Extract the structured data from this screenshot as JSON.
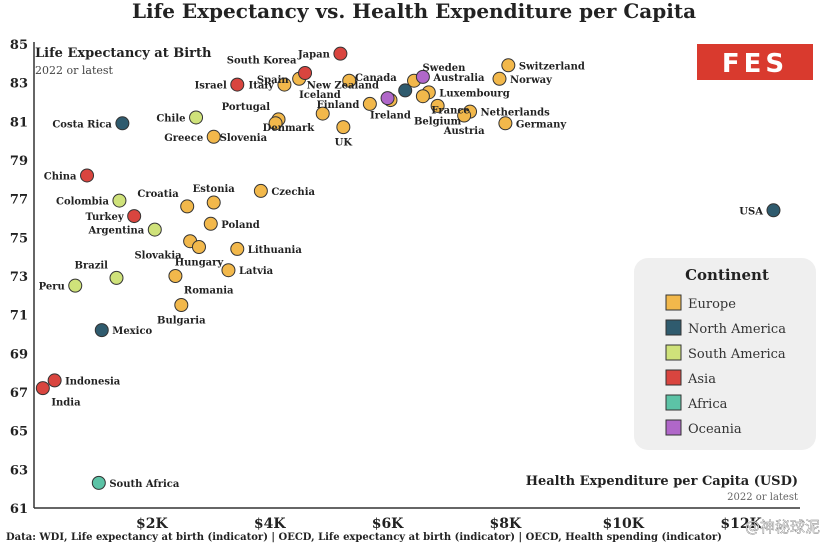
{
  "title": "Life Expectancy vs. Health Expenditure per Capita",
  "source": "Data: WDI, Life expectancy at birth (indicator) | OECD, Life expectancy at birth (indicator) | OECD, Health spending (indicator)",
  "logo": "FES",
  "watermark": "@神秘球泥",
  "chart_data": {
    "type": "scatter",
    "title": "Life Expectancy vs. Health Expenditure per Capita",
    "ylabel": "Life Expectancy at Birth",
    "ylabel_sub": "2022 or latest",
    "xlabel": "Health Expenditure per Capita (USD)",
    "xlabel_sub": "2022 or latest",
    "xlim": [
      0,
      13000
    ],
    "ylim": [
      61,
      85
    ],
    "xticks": [
      2000,
      4000,
      6000,
      8000,
      10000,
      12000
    ],
    "xtick_labels": [
      "$2K",
      "$4K",
      "$6K",
      "$8K",
      "$10K",
      "$12K"
    ],
    "yticks": [
      61,
      63,
      65,
      67,
      69,
      71,
      73,
      75,
      77,
      79,
      81,
      83,
      85
    ],
    "ytick_labels": [
      "61",
      "63",
      "65",
      "67",
      "69",
      "71",
      "73",
      "75",
      "77",
      "79",
      "81",
      "83",
      "85"
    ],
    "grid": false,
    "legend_position": "bottom-right",
    "legend_title": "Continent",
    "continents": [
      {
        "name": "Europe",
        "color": "#f2b84b"
      },
      {
        "name": "North America",
        "color": "#2f5b6e"
      },
      {
        "name": "South America",
        "color": "#cfe27a"
      },
      {
        "name": "Asia",
        "color": "#d9453f"
      },
      {
        "name": "Africa",
        "color": "#5cc3a6"
      },
      {
        "name": "Oceania",
        "color": "#b067c9"
      }
    ],
    "points": [
      {
        "country": "Switzerland",
        "continent": "Europe",
        "x": 8050,
        "y": 83.9,
        "label_pos": "right"
      },
      {
        "country": "Norway",
        "continent": "Europe",
        "x": 7900,
        "y": 83.2,
        "label_pos": "right"
      },
      {
        "country": "Netherlands",
        "continent": "Europe",
        "x": 7400,
        "y": 81.5,
        "label_pos": "right"
      },
      {
        "country": "Germany",
        "continent": "Europe",
        "x": 8000,
        "y": 80.9,
        "label_pos": "right"
      },
      {
        "country": "Austria",
        "continent": "Europe",
        "x": 7300,
        "y": 81.3,
        "label_pos": "below"
      },
      {
        "country": "Belgium",
        "continent": "Europe",
        "x": 6850,
        "y": 81.8,
        "label_pos": "below"
      },
      {
        "country": "Luxembourg",
        "continent": "Europe",
        "x": 6700,
        "y": 82.5,
        "label_pos": "right"
      },
      {
        "country": "France",
        "continent": "Europe",
        "x": 6600,
        "y": 82.3,
        "label_pos": "below-right"
      },
      {
        "country": "Sweden",
        "continent": "Europe",
        "x": 6450,
        "y": 83.1,
        "label_pos": "above-right"
      },
      {
        "country": "Iceland",
        "continent": "Europe",
        "x": 5350,
        "y": 83.1,
        "label_pos": "below-left"
      },
      {
        "country": "Finland",
        "continent": "Europe",
        "x": 5700,
        "y": 81.9,
        "label_pos": "left"
      },
      {
        "country": "Ireland",
        "continent": "Europe",
        "x": 6050,
        "y": 82.1,
        "label_pos": "below"
      },
      {
        "country": "UK",
        "continent": "Europe",
        "x": 5250,
        "y": 80.7,
        "label_pos": "below"
      },
      {
        "country": "Denmark",
        "continent": "Europe",
        "x": 4900,
        "y": 81.4,
        "label_pos": "below-left"
      },
      {
        "country": "Spain",
        "continent": "Europe",
        "x": 4500,
        "y": 83.2,
        "label_pos": "left"
      },
      {
        "country": "Italy",
        "continent": "Europe",
        "x": 4250,
        "y": 82.9,
        "label_pos": "left"
      },
      {
        "country": "Portugal",
        "continent": "Europe",
        "x": 4150,
        "y": 81.1,
        "label_pos": "above-left"
      },
      {
        "country": "Slovenia",
        "continent": "Europe",
        "x": 4100,
        "y": 80.9,
        "label_pos": "below-left"
      },
      {
        "country": "Greece",
        "continent": "Europe",
        "x": 3050,
        "y": 80.2,
        "label_pos": "left"
      },
      {
        "country": "Czechia",
        "continent": "Europe",
        "x": 3850,
        "y": 77.4,
        "label_pos": "right"
      },
      {
        "country": "Estonia",
        "continent": "Europe",
        "x": 3050,
        "y": 76.8,
        "label_pos": "above"
      },
      {
        "country": "Croatia",
        "continent": "Europe",
        "x": 2600,
        "y": 76.6,
        "label_pos": "above-left"
      },
      {
        "country": "Poland",
        "continent": "Europe",
        "x": 3000,
        "y": 75.7,
        "label_pos": "right"
      },
      {
        "country": "Slovakia",
        "continent": "Europe",
        "x": 2650,
        "y": 74.8,
        "label_pos": "below-left"
      },
      {
        "country": "Hungary",
        "continent": "Europe",
        "x": 2800,
        "y": 74.5,
        "label_pos": "below"
      },
      {
        "country": "Lithuania",
        "continent": "Europe",
        "x": 3450,
        "y": 74.4,
        "label_pos": "right"
      },
      {
        "country": "Latvia",
        "continent": "Europe",
        "x": 3300,
        "y": 73.3,
        "label_pos": "right"
      },
      {
        "country": "Romania",
        "continent": "Europe",
        "x": 2400,
        "y": 73.0,
        "label_pos": "below-right"
      },
      {
        "country": "Bulgaria",
        "continent": "Europe",
        "x": 2500,
        "y": 71.5,
        "label_pos": "below"
      },
      {
        "country": "USA",
        "continent": "North America",
        "x": 12550,
        "y": 76.4,
        "label_pos": "left"
      },
      {
        "country": "Canada",
        "continent": "North America",
        "x": 6300,
        "y": 82.6,
        "label_pos": "above-left"
      },
      {
        "country": "Costa Rica",
        "continent": "North America",
        "x": 1500,
        "y": 80.9,
        "label_pos": "left"
      },
      {
        "country": "Mexico",
        "continent": "North America",
        "x": 1150,
        "y": 70.2,
        "label_pos": "right"
      },
      {
        "country": "Chile",
        "continent": "South America",
        "x": 2750,
        "y": 81.2,
        "label_pos": "left"
      },
      {
        "country": "Colombia",
        "continent": "South America",
        "x": 1450,
        "y": 76.9,
        "label_pos": "left"
      },
      {
        "country": "Argentina",
        "continent": "South America",
        "x": 2050,
        "y": 75.4,
        "label_pos": "left"
      },
      {
        "country": "Brazil",
        "continent": "South America",
        "x": 1400,
        "y": 72.9,
        "label_pos": "above-left"
      },
      {
        "country": "Peru",
        "continent": "South America",
        "x": 700,
        "y": 72.5,
        "label_pos": "left"
      },
      {
        "country": "Japan",
        "continent": "Asia",
        "x": 5200,
        "y": 84.5,
        "label_pos": "left"
      },
      {
        "country": "South Korea",
        "continent": "Asia",
        "x": 4600,
        "y": 83.5,
        "label_pos": "above-left"
      },
      {
        "country": "Israel",
        "continent": "Asia",
        "x": 3450,
        "y": 82.9,
        "label_pos": "left"
      },
      {
        "country": "China",
        "continent": "Asia",
        "x": 900,
        "y": 78.2,
        "label_pos": "left"
      },
      {
        "country": "Turkey",
        "continent": "Asia",
        "x": 1700,
        "y": 76.1,
        "label_pos": "left"
      },
      {
        "country": "Indonesia",
        "continent": "Asia",
        "x": 350,
        "y": 67.6,
        "label_pos": "right"
      },
      {
        "country": "India",
        "continent": "Asia",
        "x": 150,
        "y": 67.2,
        "label_pos": "below-right"
      },
      {
        "country": "South Africa",
        "continent": "Africa",
        "x": 1100,
        "y": 62.3,
        "label_pos": "right"
      },
      {
        "country": "Australia",
        "continent": "Oceania",
        "x": 6600,
        "y": 83.3,
        "label_pos": "right"
      },
      {
        "country": "New Zealand",
        "continent": "Oceania",
        "x": 6000,
        "y": 82.2,
        "label_pos": "above-left"
      }
    ]
  }
}
